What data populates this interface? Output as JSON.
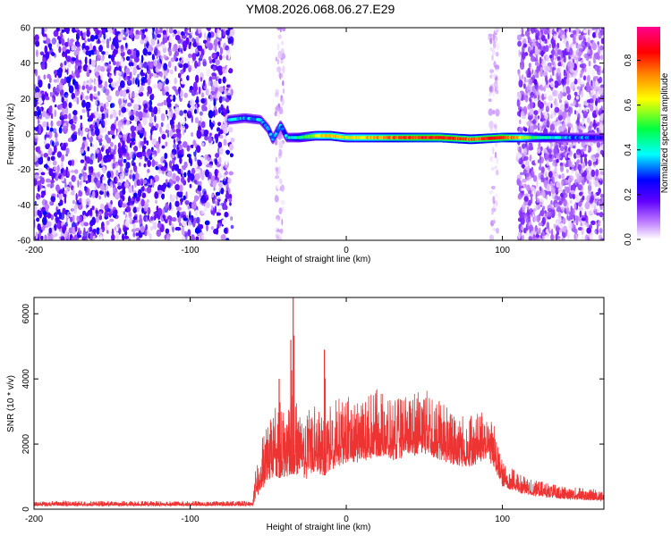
{
  "page_title": "YM08.2026.068.06.27.E29",
  "chart_data": [
    {
      "type": "heatmap",
      "title": "YM08.2026.068.06.27.E29",
      "xlabel": "Height of straight line (km)",
      "ylabel": "Frequency (Hz)",
      "xlim": [
        -200,
        165
      ],
      "ylim": [
        -60,
        60
      ],
      "x_ticks": [
        -200,
        -100,
        0,
        100
      ],
      "y_ticks": [
        -60,
        -40,
        -20,
        0,
        20,
        40,
        60
      ],
      "colorbar": {
        "label": "Normalized spectral amplitude",
        "range": [
          0,
          0.95
        ],
        "ticks": [
          0.0,
          0.2,
          0.4,
          0.6,
          0.8
        ],
        "tick_labels": [
          "0.0",
          "0.2",
          "0.4",
          "0.6",
          "0.8"
        ],
        "colormap": [
          "#ffffff",
          "#a020f0",
          "#0000ff",
          "#00ffff",
          "#00ff00",
          "#ffff00",
          "#ff8000",
          "#ff0000",
          "#ff00a0"
        ]
      },
      "regions": [
        {
          "name": "noise-left",
          "x_range": [
            -200,
            -73
          ],
          "amplitude": 0.15
        },
        {
          "name": "sparse-noise",
          "x_range": [
            -45,
            -40
          ],
          "amplitude": 0.05
        },
        {
          "name": "sparse-noise",
          "x_range": [
            92,
            97
          ],
          "amplitude": 0.05
        },
        {
          "name": "noise-right",
          "x_range": [
            110,
            165
          ],
          "amplitude": 0.1
        }
      ],
      "signal_ridge": [
        {
          "x": -75,
          "freq": 8,
          "amp": 0.35
        },
        {
          "x": -65,
          "freq": 9,
          "amp": 0.35
        },
        {
          "x": -55,
          "freq": 8,
          "amp": 0.35
        },
        {
          "x": -50,
          "freq": 3,
          "amp": 0.3
        },
        {
          "x": -47,
          "freq": -3,
          "amp": 0.3
        },
        {
          "x": -42,
          "freq": 5,
          "amp": 0.3
        },
        {
          "x": -38,
          "freq": -2,
          "amp": 0.35
        },
        {
          "x": -30,
          "freq": -2,
          "amp": 0.45
        },
        {
          "x": -20,
          "freq": -1,
          "amp": 0.6
        },
        {
          "x": -10,
          "freq": -1,
          "amp": 0.7
        },
        {
          "x": 0,
          "freq": -2,
          "amp": 0.6
        },
        {
          "x": 20,
          "freq": -2,
          "amp": 0.7
        },
        {
          "x": 40,
          "freq": -2,
          "amp": 0.8
        },
        {
          "x": 60,
          "freq": -2,
          "amp": 0.85
        },
        {
          "x": 80,
          "freq": -3,
          "amp": 0.75
        },
        {
          "x": 100,
          "freq": -2,
          "amp": 0.85
        },
        {
          "x": 120,
          "freq": -2,
          "amp": 0.5
        },
        {
          "x": 140,
          "freq": -2,
          "amp": 0.35
        },
        {
          "x": 165,
          "freq": -2,
          "amp": 0.25
        }
      ]
    },
    {
      "type": "line",
      "xlabel": "Height of straight line (km)",
      "ylabel": "SNR (10 * v/v)",
      "xlim": [
        -200,
        165
      ],
      "ylim": [
        0,
        6500
      ],
      "x_ticks": [
        -200,
        -100,
        0,
        100
      ],
      "y_ticks": [
        0,
        2000,
        4000,
        6000
      ],
      "color": "#ee3333",
      "envelope": {
        "x": [
          -200,
          -60,
          -57,
          -50,
          -45,
          -40,
          -35,
          -30,
          -25,
          -20,
          -15,
          -10,
          0,
          10,
          20,
          30,
          40,
          50,
          60,
          70,
          80,
          90,
          95,
          100,
          110,
          120,
          140,
          165
        ],
        "base": [
          100,
          100,
          400,
          800,
          1000,
          900,
          1100,
          1000,
          900,
          1200,
          1000,
          1200,
          1400,
          1400,
          1600,
          1500,
          1600,
          1700,
          1500,
          1300,
          1300,
          1500,
          1200,
          700,
          500,
          400,
          300,
          250
        ],
        "peak": [
          250,
          250,
          1800,
          2700,
          3300,
          3000,
          3600,
          3300,
          3000,
          3200,
          2800,
          3300,
          3500,
          3400,
          3700,
          3300,
          3600,
          3700,
          3400,
          3000,
          2900,
          3000,
          2600,
          1500,
          1100,
          900,
          700,
          600
        ]
      },
      "spikes": [
        {
          "x": -34,
          "y": 6500
        },
        {
          "x": -35.5,
          "y": 5200
        },
        {
          "x": -14,
          "y": 4900
        },
        {
          "x": -43,
          "y": 4000
        }
      ]
    }
  ]
}
